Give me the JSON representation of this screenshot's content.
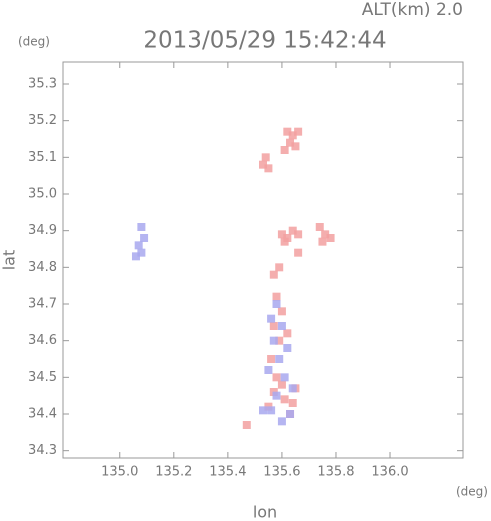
{
  "chart_data": {
    "type": "scatter",
    "title": "2013/05/29 15:42:44",
    "subtitle": "ALT(km) 2.0",
    "x_label": "lon",
    "x_unit": "(deg)",
    "y_label": "lat",
    "y_unit": "(deg)",
    "xlim": [
      134.79,
      136.27
    ],
    "ylim": [
      34.28,
      35.36
    ],
    "xticks": [
      {
        "value": 135,
        "label": "135.0"
      },
      135.2,
      135.4,
      135.6,
      135.8,
      {
        "value": 136,
        "label": "136.0"
      }
    ],
    "yticks": [
      34.3,
      34.4,
      34.5,
      34.6,
      34.7,
      34.8,
      34.9,
      {
        "value": 35,
        "label": "35.0"
      },
      35.1,
      35.2,
      35.3
    ],
    "grid": false,
    "series": [
      {
        "color": "#f2a0a0",
        "x": [
          135.62,
          135.64,
          135.66,
          135.63,
          135.61,
          135.65,
          135.54,
          135.53,
          135.55,
          135.6,
          135.62,
          135.64,
          135.66,
          135.61,
          135.74,
          135.76,
          135.78,
          135.75,
          135.58,
          135.6,
          135.57,
          135.59,
          135.62,
          135.56,
          135.58,
          135.6,
          135.57,
          135.61,
          135.63,
          135.55,
          135.65,
          135.64,
          135.47,
          135.59,
          135.57,
          135.66
        ],
        "values": [
          35.17,
          35.16,
          35.17,
          35.14,
          35.12,
          35.13,
          35.1,
          35.08,
          35.07,
          34.89,
          34.88,
          34.9,
          34.89,
          34.87,
          34.91,
          34.89,
          34.88,
          34.87,
          34.72,
          34.68,
          34.64,
          34.6,
          34.62,
          34.55,
          34.5,
          34.48,
          34.46,
          34.44,
          34.4,
          34.42,
          34.47,
          34.43,
          34.37,
          34.8,
          34.78,
          34.84
        ]
      },
      {
        "color": "#a8a8ee",
        "x": [
          135.08,
          135.09,
          135.07,
          135.08,
          135.06,
          135.58,
          135.56,
          135.6,
          135.62,
          135.57,
          135.59,
          135.55,
          135.61,
          135.58,
          135.64,
          135.56,
          135.53,
          135.6,
          135.63
        ],
        "values": [
          34.91,
          34.88,
          34.86,
          34.84,
          34.83,
          34.7,
          34.66,
          34.64,
          34.58,
          34.6,
          34.55,
          34.52,
          34.5,
          34.45,
          34.47,
          34.41,
          34.41,
          34.38,
          34.4
        ]
      }
    ]
  }
}
